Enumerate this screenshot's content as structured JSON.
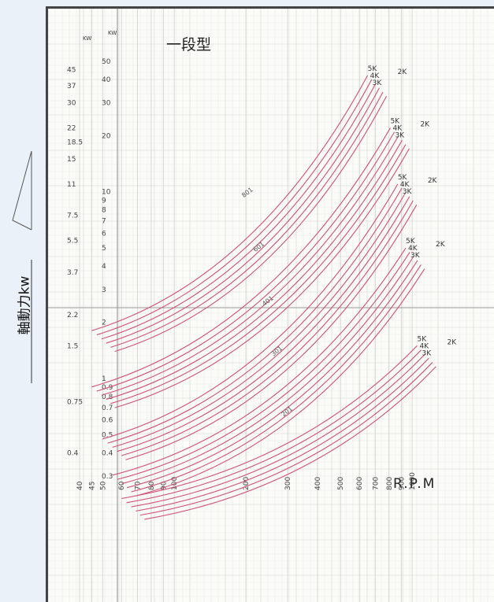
{
  "side_label": "軸動力kw",
  "chart_data": {
    "type": "line",
    "title": "一段型",
    "xlabel": "R.P.M",
    "ylabel": "軸動力kw",
    "x_scale": "log",
    "y_scale": "log",
    "xlim": [
      40,
      1200
    ],
    "ylim": [
      0.2,
      60
    ],
    "x_ticks": [
      "40",
      "45",
      "50",
      "60",
      "70",
      "80",
      "90",
      "100",
      "200",
      "300",
      "400",
      "500",
      "600",
      "700",
      "800",
      "900",
      "1000"
    ],
    "x_tick_values": [
      40,
      45,
      50,
      60,
      70,
      80,
      90,
      100,
      200,
      300,
      400,
      500,
      600,
      700,
      800,
      900,
      1000
    ],
    "y_ticks_inner": {
      "unit": "KW",
      "labels": [
        "50",
        "40",
        "30",
        "20",
        "10",
        "9",
        "8",
        "7",
        "6",
        "5",
        "4",
        "3",
        "2",
        "1",
        "0.9",
        "0.8",
        "0.7",
        "0.6",
        "0.5",
        "0.4",
        "0.3"
      ],
      "values": [
        50,
        40,
        30,
        20,
        10,
        9,
        8,
        7,
        6,
        5,
        4,
        3,
        2,
        1,
        0.9,
        0.8,
        0.7,
        0.6,
        0.5,
        0.4,
        0.3
      ]
    },
    "y_ticks_outer": {
      "unit": "KW",
      "labels": [
        "45",
        "37",
        "30",
        "22",
        "18.5",
        "15",
        "11",
        "7.5",
        "5.5",
        "3.7",
        "2.2",
        "1.5",
        "0.75",
        "0.4"
      ],
      "values": [
        45,
        37,
        30,
        22,
        18.5,
        15,
        11,
        7.5,
        5.5,
        3.7,
        2.2,
        1.5,
        0.75,
        0.4
      ]
    },
    "groups": [
      {
        "name": "801",
        "k_labels": [
          "5K",
          "4K",
          "3K",
          "2K"
        ],
        "start_rpm": 45,
        "start_kw": 1.9,
        "end_rpm": 650,
        "end_kw": 42,
        "spacing": 0.95
      },
      {
        "name": "601",
        "k_labels": [
          "5K",
          "4K",
          "3K",
          "2K"
        ],
        "start_rpm": 45,
        "start_kw": 0.95,
        "end_rpm": 810,
        "end_kw": 22,
        "spacing": 0.95
      },
      {
        "name": "401",
        "k_labels": [
          "5K",
          "4K",
          "3K",
          "2K"
        ],
        "start_rpm": 50,
        "start_kw": 0.5,
        "end_rpm": 870,
        "end_kw": 11,
        "spacing": 0.95
      },
      {
        "name": "301",
        "k_labels": [
          "5K",
          "4K",
          "3K",
          "2K"
        ],
        "start_rpm": 55,
        "start_kw": 0.32,
        "end_rpm": 940,
        "end_kw": 5,
        "spacing": 0.95
      },
      {
        "name": "201",
        "k_labels": [
          "5K",
          "4K",
          "3K",
          "2K"
        ],
        "start_rpm": 60,
        "start_kw": 0.24,
        "end_rpm": 1050,
        "end_kw": 1.5,
        "spacing": 0.95
      }
    ],
    "curves_per_group": 6,
    "curve_color": "#d0507a",
    "grid": true
  }
}
